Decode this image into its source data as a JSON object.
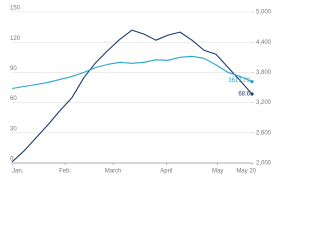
{
  "chart_data": {
    "type": "line",
    "xlim": [
      0,
      140
    ],
    "xticks": [
      {
        "value": 0,
        "label": "Jan."
      },
      {
        "value": 31,
        "label": "Feb."
      },
      {
        "value": 59,
        "label": "March"
      },
      {
        "value": 90,
        "label": "April"
      },
      {
        "value": 120,
        "label": "May"
      },
      {
        "value": 140,
        "label": "May 20"
      }
    ],
    "ylim": [
      0,
      150
    ],
    "yticks": [
      0,
      30,
      60,
      90,
      120,
      150
    ],
    "y2lim": [
      2000,
      5000
    ],
    "y2ticks": [
      {
        "value": 2000,
        "label": "2,000"
      },
      {
        "value": 2600,
        "label": "2,600"
      },
      {
        "value": 3200,
        "label": "3,200"
      },
      {
        "value": 3800,
        "label": "3,800"
      },
      {
        "value": 4400,
        "label": "4,400"
      },
      {
        "value": 5000,
        "label": "5,000"
      }
    ],
    "grid": true,
    "x": [
      0,
      7,
      14,
      21,
      28,
      35,
      42,
      49,
      56,
      63,
      70,
      77,
      84,
      91,
      98,
      105,
      112,
      119,
      126,
      133,
      140
    ],
    "series": [
      {
        "color": "#1f3a6e",
        "values": [
          1,
          12,
          25,
          38,
          52,
          65,
          85,
          100,
          112,
          123,
          132,
          128,
          122,
          127,
          130,
          122,
          112,
          108,
          95,
          82,
          68.6
        ]
      },
      {
        "color": "#2aa6c9",
        "axis": "y2",
        "values": [
          3480,
          3520,
          3560,
          3600,
          3660,
          3720,
          3800,
          3900,
          3960,
          4000,
          3980,
          4000,
          4050,
          4040,
          4100,
          4120,
          4080,
          3950,
          3800,
          3720,
          3617.79
        ]
      }
    ]
  }
}
